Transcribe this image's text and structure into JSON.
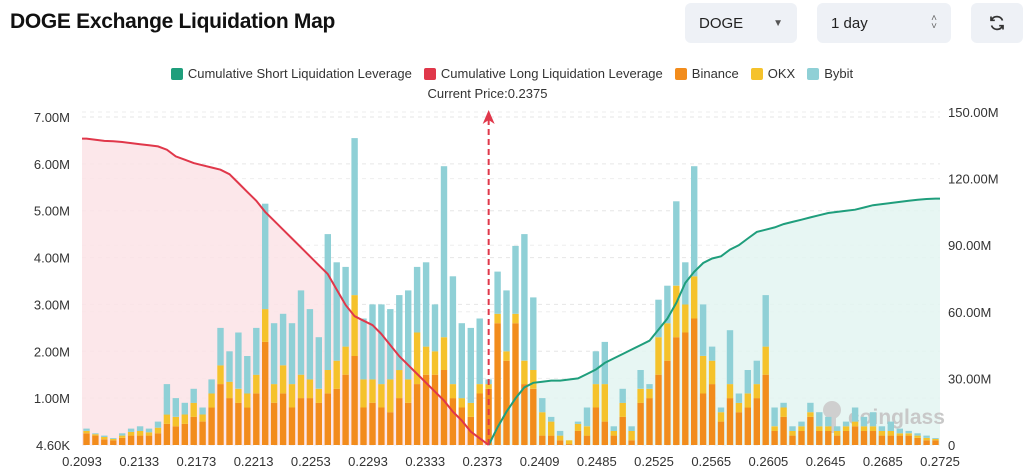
{
  "header": {
    "title": "DOGE Exchange Liquidation Map",
    "symbol_select": "DOGE",
    "range_select": "1 day",
    "refresh_icon": "refresh-icon"
  },
  "colors": {
    "binance": "#f28c1c",
    "okx": "#f5c22b",
    "bybit": "#8fd0d6",
    "long": "#e0374a",
    "short": "#1f9e7c",
    "long_fill": "#fbe3e6",
    "short_fill": "#e3f4f1"
  },
  "watermark": "coinglass",
  "chart_data": {
    "type": "bar",
    "legend": [
      "Cumulative Short Liquidation Leverage",
      "Cumulative Long Liquidation Leverage",
      "Binance",
      "OKX",
      "Bybit"
    ],
    "legend_placement": "top-center",
    "current_price_label": "Current Price:0.2375",
    "current_price_bar_index": 45,
    "x_tick_labels": [
      "0.2093",
      "0.2133",
      "0.2173",
      "0.2213",
      "0.2253",
      "0.2293",
      "0.2333",
      "0.2373",
      "0.2409",
      "0.2485",
      "0.2525",
      "0.2565",
      "0.2605",
      "0.2645",
      "0.2685",
      "0.2725"
    ],
    "y_left": {
      "ticks": [
        "4.60K",
        "1.00M",
        "2.00M",
        "3.00M",
        "4.00M",
        "5.00M",
        "6.00M",
        "7.00M"
      ],
      "range_m": [
        0,
        7
      ]
    },
    "y_right": {
      "ticks": [
        "0",
        "30.00M",
        "60.00M",
        "90.00M",
        "120.00M",
        "150.00M"
      ],
      "range_m": [
        0,
        150
      ]
    },
    "grid": true,
    "series_order": [
      "Binance",
      "OKX",
      "Bybit"
    ],
    "bars_m": [
      [
        0.25,
        0.05,
        0.05
      ],
      [
        0.2,
        0.03,
        0.02
      ],
      [
        0.12,
        0.05,
        0.03
      ],
      [
        0.1,
        0.03,
        0.02
      ],
      [
        0.15,
        0.05,
        0.05
      ],
      [
        0.2,
        0.08,
        0.07
      ],
      [
        0.2,
        0.1,
        0.1
      ],
      [
        0.2,
        0.07,
        0.08
      ],
      [
        0.25,
        0.12,
        0.13
      ],
      [
        0.45,
        0.2,
        0.65
      ],
      [
        0.4,
        0.2,
        0.4
      ],
      [
        0.45,
        0.2,
        0.25
      ],
      [
        0.6,
        0.3,
        0.3
      ],
      [
        0.5,
        0.15,
        0.15
      ],
      [
        0.8,
        0.3,
        0.3
      ],
      [
        1.3,
        0.4,
        0.8
      ],
      [
        1.0,
        0.35,
        0.65
      ],
      [
        0.9,
        0.3,
        1.2
      ],
      [
        0.8,
        0.3,
        0.8
      ],
      [
        1.1,
        0.4,
        1.0
      ],
      [
        2.2,
        0.7,
        2.25
      ],
      [
        0.9,
        0.4,
        1.3
      ],
      [
        1.1,
        0.6,
        1.1
      ],
      [
        0.8,
        0.5,
        1.3
      ],
      [
        1.0,
        0.5,
        1.8
      ],
      [
        1.0,
        0.4,
        1.5
      ],
      [
        0.9,
        0.3,
        1.1
      ],
      [
        1.1,
        0.5,
        2.9
      ],
      [
        1.2,
        0.6,
        2.1
      ],
      [
        1.5,
        0.6,
        1.7
      ],
      [
        1.9,
        1.3,
        3.35
      ],
      [
        0.8,
        0.6,
        1.3
      ],
      [
        0.9,
        0.5,
        1.6
      ],
      [
        0.8,
        0.5,
        1.7
      ],
      [
        0.7,
        0.7,
        1.5
      ],
      [
        1.0,
        0.6,
        1.6
      ],
      [
        0.9,
        0.5,
        1.9
      ],
      [
        1.3,
        1.1,
        1.4
      ],
      [
        1.5,
        0.6,
        1.8
      ],
      [
        1.5,
        0.5,
        1.0
      ],
      [
        1.6,
        0.7,
        3.65
      ],
      [
        1.0,
        0.3,
        2.3
      ],
      [
        0.8,
        0.2,
        1.6
      ],
      [
        0.6,
        0.3,
        1.6
      ],
      [
        1.1,
        0.2,
        1.4
      ],
      [
        1.2,
        0.1,
        0.1
      ],
      [
        2.6,
        0.2,
        0.9
      ],
      [
        1.8,
        0.2,
        1.3
      ],
      [
        2.6,
        0.2,
        1.45
      ],
      [
        1.3,
        0.5,
        2.7
      ],
      [
        1.2,
        0.4,
        1.55
      ],
      [
        0.2,
        0.5,
        0.3
      ],
      [
        0.2,
        0.3,
        0.1
      ],
      [
        0.1,
        0.1,
        0.1
      ],
      [
        0.02,
        0.08,
        0
      ],
      [
        0.3,
        0.15,
        0.05
      ],
      [
        0.2,
        0.2,
        0.4
      ],
      [
        0.8,
        0.5,
        0.7
      ],
      [
        0.5,
        0.8,
        0.9
      ],
      [
        0.2,
        0.1,
        0.1
      ],
      [
        0.6,
        0.3,
        0.3
      ],
      [
        0.1,
        0.2,
        0.1
      ],
      [
        0.9,
        0.3,
        0.4
      ],
      [
        1.0,
        0.2,
        0.1
      ],
      [
        1.5,
        0.8,
        0.8
      ],
      [
        1.8,
        0.8,
        0.8
      ],
      [
        2.3,
        1.1,
        1.8
      ],
      [
        2.4,
        0.6,
        0.9
      ],
      [
        2.7,
        0.9,
        2.35
      ],
      [
        1.1,
        0.8,
        1.1
      ],
      [
        1.3,
        0.5,
        0.3
      ],
      [
        0.5,
        0.2,
        0.1
      ],
      [
        1.0,
        0.3,
        1.15
      ],
      [
        0.7,
        0.2,
        0.2
      ],
      [
        0.8,
        0.3,
        0.5
      ],
      [
        1.0,
        0.3,
        0.5
      ],
      [
        1.5,
        0.6,
        1.1
      ],
      [
        0.3,
        0.1,
        0.4
      ],
      [
        0.6,
        0.2,
        0.1
      ],
      [
        0.2,
        0.1,
        0.1
      ],
      [
        0.3,
        0.1,
        0.1
      ],
      [
        0.6,
        0.1,
        0.2
      ],
      [
        0.3,
        0.1,
        0.3
      ],
      [
        0.3,
        0.1,
        0.2
      ],
      [
        0.2,
        0.1,
        0.1
      ],
      [
        0.3,
        0.1,
        0.1
      ],
      [
        0.4,
        0.1,
        0.3
      ],
      [
        0.3,
        0.1,
        0.2
      ],
      [
        0.3,
        0.1,
        0.3
      ],
      [
        0.2,
        0.1,
        0.1
      ],
      [
        0.2,
        0.1,
        0.2
      ],
      [
        0.2,
        0.05,
        0.1
      ],
      [
        0.2,
        0.05,
        0.05
      ],
      [
        0.15,
        0.05,
        0.05
      ],
      [
        0.1,
        0.05,
        0.05
      ],
      [
        0.1,
        0.03,
        0.02
      ]
    ],
    "long_cumulative_m": [
      138,
      137.5,
      137,
      136.8,
      136.5,
      136,
      135.5,
      135,
      134.5,
      133,
      130,
      128.5,
      127,
      126,
      125,
      124,
      122,
      118,
      114,
      110,
      105,
      101,
      97,
      93,
      89,
      85,
      81,
      77,
      70,
      63,
      58,
      56,
      54,
      50,
      45,
      40,
      36,
      32,
      28,
      24,
      20,
      15,
      11,
      6,
      3,
      0,
      null,
      null,
      null,
      null,
      null,
      null,
      null,
      null,
      null,
      null,
      null,
      null,
      null,
      null,
      null,
      null,
      null,
      null,
      null,
      null,
      null,
      null,
      null,
      null,
      null,
      null,
      null,
      null,
      null,
      null,
      null,
      null,
      null,
      null,
      null,
      null,
      null,
      null,
      null,
      null,
      null,
      null,
      null,
      null,
      null,
      null,
      null,
      null,
      null,
      null
    ],
    "short_cumulative_m": [
      null,
      null,
      null,
      null,
      null,
      null,
      null,
      null,
      null,
      null,
      null,
      null,
      null,
      null,
      null,
      null,
      null,
      null,
      null,
      null,
      null,
      null,
      null,
      null,
      null,
      null,
      null,
      null,
      null,
      null,
      null,
      null,
      null,
      null,
      null,
      null,
      null,
      null,
      null,
      null,
      null,
      null,
      null,
      null,
      null,
      0,
      8,
      15,
      21,
      26,
      28,
      28.5,
      29,
      29,
      29.5,
      30,
      32,
      34,
      37,
      39,
      41,
      43,
      45,
      47,
      52,
      57,
      64,
      73,
      78,
      82,
      84,
      85,
      88,
      90,
      93,
      96,
      97,
      98,
      99.5,
      100.5,
      101.5,
      102.5,
      103.5,
      104.5,
      105,
      105.5,
      106,
      107,
      108,
      108.5,
      109,
      109.5,
      110,
      110.5,
      110.8,
      111
    ]
  }
}
